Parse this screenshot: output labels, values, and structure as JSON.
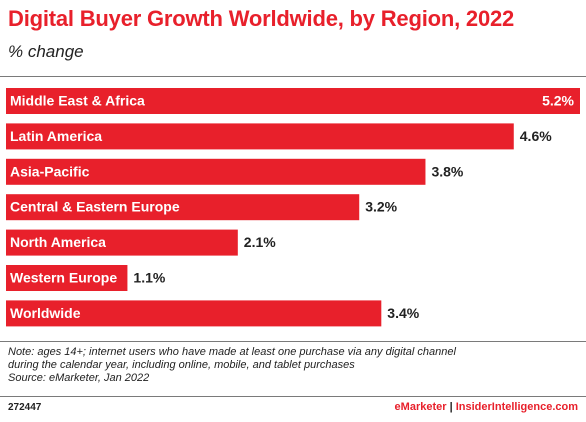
{
  "header": {
    "title": "Digital Buyer Growth Worldwide, by Region, 2022",
    "subtitle": "% change"
  },
  "chart_data": {
    "type": "bar",
    "orientation": "horizontal",
    "title": "Digital Buyer Growth Worldwide, by Region, 2022",
    "subtitle": "% change",
    "categories": [
      "Middle East & Africa",
      "Latin America",
      "Asia-Pacific",
      "Central & Eastern Europe",
      "North America",
      "Western Europe",
      "Worldwide"
    ],
    "values": [
      5.2,
      4.6,
      3.8,
      3.2,
      2.1,
      1.1,
      3.4
    ],
    "value_labels": [
      "5.2%",
      "4.6%",
      "3.8%",
      "3.2%",
      "2.1%",
      "1.1%",
      "3.4%"
    ],
    "xlim": [
      0,
      5.2
    ],
    "bar_color": "#e8202b",
    "grid": false,
    "legend": "none"
  },
  "notes": {
    "line1": "Note: ages 14+; internet users who have made at least one purchase via any digital channel",
    "line2": "during the calendar year, including online, mobile, and tablet purchases",
    "line3": "Source: eMarketer, Jan 2022"
  },
  "footer": {
    "id": "272447",
    "brand1": "eMarketer",
    "separator": "|",
    "brand2": "InsiderIntelligence.com"
  }
}
